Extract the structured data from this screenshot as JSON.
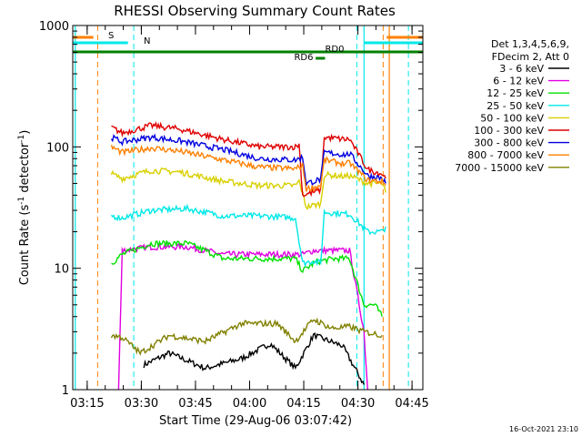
{
  "chart_data": {
    "type": "line",
    "title": "RHESSI Observing Summary Count Rates",
    "xlabel": "Start Time (29-Aug-06 03:07:42)",
    "ylabel_main": "Count Rate (s",
    "ylabel_sup1": "-1",
    "ylabel_mid": " detector",
    "ylabel_sup2": "-1",
    "ylabel_end": ")",
    "yscale": "log",
    "ylim": [
      1,
      1000
    ],
    "xlim_minutes": [
      3.3,
      100.3
    ],
    "x_tick_labels": [
      "03:15",
      "03:30",
      "03:45",
      "04:00",
      "04:15",
      "04:30",
      "04:45"
    ],
    "x_tick_minutes": [
      7.3,
      22.3,
      37.3,
      52.3,
      67.3,
      82.3,
      97.3
    ],
    "y_tick_labels": [
      "1",
      "10",
      "100",
      "1000"
    ],
    "y_tick_values": [
      1,
      10,
      100,
      1000
    ],
    "legend_header": [
      "Det 1,3,4,5,6,9,",
      "FDecim 2, Att 0"
    ],
    "series": [
      {
        "name": "3 - 6 keV",
        "color": "#000000",
        "points": [
          [
            23,
            1.6
          ],
          [
            30,
            2.0
          ],
          [
            40,
            1.5
          ],
          [
            50,
            1.8
          ],
          [
            58,
            2.4
          ],
          [
            65,
            1.5
          ],
          [
            70,
            2.8
          ],
          [
            78,
            2.3
          ],
          [
            84,
            1.1
          ]
        ]
      },
      {
        "name": "6 - 12 keV",
        "color": "#e000e0",
        "points": [
          [
            16,
            1.0
          ],
          [
            17,
            14
          ],
          [
            25,
            15
          ],
          [
            35,
            15
          ],
          [
            40,
            14
          ],
          [
            45,
            13
          ],
          [
            55,
            13
          ],
          [
            65,
            13
          ],
          [
            67,
            13
          ],
          [
            70,
            14
          ],
          [
            75,
            14
          ],
          [
            79,
            14
          ],
          [
            80,
            14
          ],
          [
            84,
            3
          ],
          [
            85,
            1.0
          ]
        ]
      },
      {
        "name": "12 - 25 keV",
        "color": "#00e000",
        "points": [
          [
            14,
            11
          ],
          [
            17,
            13
          ],
          [
            25,
            16
          ],
          [
            35,
            16
          ],
          [
            40,
            14
          ],
          [
            45,
            12
          ],
          [
            55,
            12
          ],
          [
            65,
            12
          ],
          [
            67,
            9.5
          ],
          [
            70,
            11
          ],
          [
            72,
            11.5
          ],
          [
            76,
            12
          ],
          [
            80,
            12
          ],
          [
            84,
            5
          ],
          [
            87,
            5
          ],
          [
            89,
            4
          ]
        ]
      },
      {
        "name": "25 - 50 keV",
        "color": "#00e8e8",
        "points": [
          [
            14,
            27
          ],
          [
            17,
            26
          ],
          [
            25,
            30
          ],
          [
            35,
            31
          ],
          [
            45,
            27
          ],
          [
            55,
            27
          ],
          [
            65,
            26
          ],
          [
            67,
            11
          ],
          [
            70,
            11.5
          ],
          [
            72,
            11
          ],
          [
            73,
            29
          ],
          [
            79,
            28
          ],
          [
            80,
            28
          ],
          [
            85,
            20
          ],
          [
            89,
            20
          ],
          [
            90,
            22
          ]
        ]
      },
      {
        "name": "50 - 100 keV",
        "color": "#d8d000",
        "points": [
          [
            14,
            60
          ],
          [
            17,
            55
          ],
          [
            25,
            64
          ],
          [
            33,
            62
          ],
          [
            45,
            52
          ],
          [
            55,
            48
          ],
          [
            65,
            48
          ],
          [
            66,
            52
          ],
          [
            68,
            32
          ],
          [
            72,
            34
          ],
          [
            73,
            59
          ],
          [
            79,
            57
          ],
          [
            80,
            58
          ],
          [
            85,
            50
          ],
          [
            89,
            50
          ],
          [
            90,
            42
          ]
        ]
      },
      {
        "name": "100 - 300 keV",
        "color": "#e00000",
        "points": [
          [
            14,
            145
          ],
          [
            17,
            130
          ],
          [
            25,
            150
          ],
          [
            33,
            140
          ],
          [
            45,
            115
          ],
          [
            55,
            100
          ],
          [
            65,
            100
          ],
          [
            66,
            105
          ],
          [
            67,
            40
          ],
          [
            72,
            44
          ],
          [
            73,
            120
          ],
          [
            79,
            115
          ],
          [
            80,
            116
          ],
          [
            85,
            65
          ],
          [
            89,
            60
          ],
          [
            90,
            55
          ]
        ]
      },
      {
        "name": "300 - 800 keV",
        "color": "#0000e0",
        "points": [
          [
            14,
            120
          ],
          [
            17,
            110
          ],
          [
            25,
            120
          ],
          [
            33,
            112
          ],
          [
            45,
            95
          ],
          [
            55,
            80
          ],
          [
            65,
            78
          ],
          [
            67,
            82
          ],
          [
            68,
            50
          ],
          [
            72,
            54
          ],
          [
            73,
            90
          ],
          [
            79,
            86
          ],
          [
            80,
            88
          ],
          [
            85,
            58
          ],
          [
            89,
            55
          ],
          [
            90,
            50
          ]
        ]
      },
      {
        "name": "800 - 7000 keV",
        "color": "#ff8000",
        "points": [
          [
            14,
            100
          ],
          [
            17,
            90
          ],
          [
            25,
            98
          ],
          [
            33,
            92
          ],
          [
            45,
            78
          ],
          [
            55,
            68
          ],
          [
            65,
            66
          ],
          [
            67,
            70
          ],
          [
            68,
            45
          ],
          [
            72,
            48
          ],
          [
            73,
            78
          ],
          [
            79,
            72
          ],
          [
            80,
            74
          ],
          [
            85,
            53
          ],
          [
            89,
            52
          ],
          [
            90,
            48
          ]
        ]
      },
      {
        "name": "7000 - 15000 keV",
        "color": "#808000",
        "points": [
          [
            14,
            2.8
          ],
          [
            17,
            2.7
          ],
          [
            22,
            2.0
          ],
          [
            30,
            2.8
          ],
          [
            40,
            2.5
          ],
          [
            50,
            3.5
          ],
          [
            60,
            3.5
          ],
          [
            65,
            2.5
          ],
          [
            70,
            3.8
          ],
          [
            75,
            3.2
          ],
          [
            80,
            3.3
          ],
          [
            84,
            3.0
          ],
          [
            89,
            2.8
          ]
        ]
      }
    ],
    "annotations": [
      {
        "text": "S",
        "color": "#ff8000"
      },
      {
        "text": "N",
        "color": "#00e8e8"
      },
      {
        "text": "RD0",
        "color": "#008000"
      },
      {
        "text": "RD6",
        "color": "#008000"
      }
    ],
    "timestamp": "16-Oct-2021 23:10",
    "grid": false,
    "legend_placement": "right"
  }
}
